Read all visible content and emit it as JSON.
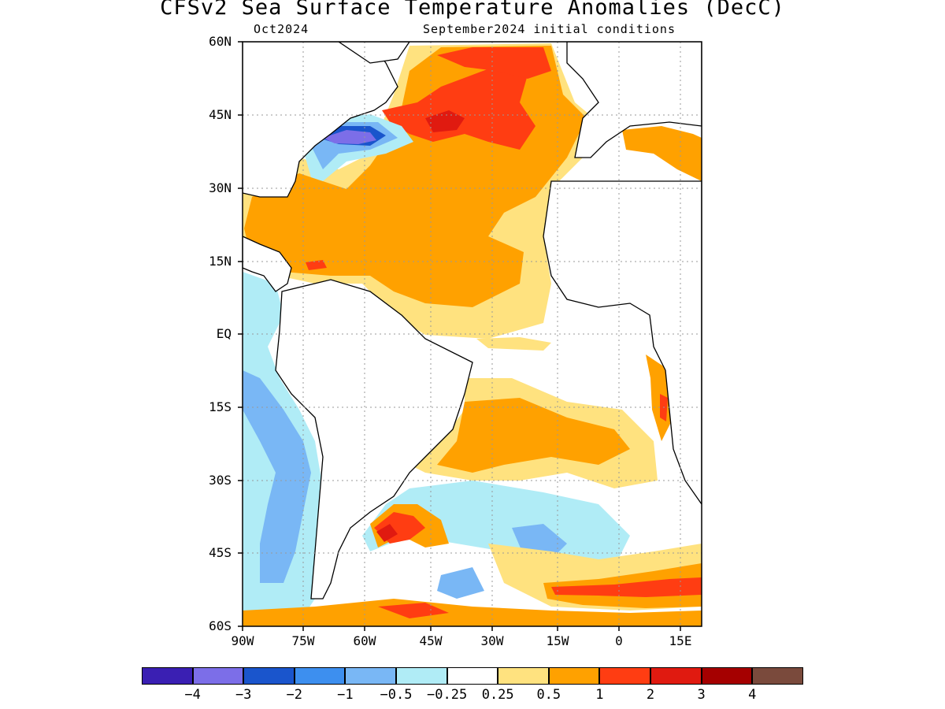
{
  "title": "CFSv2 Sea Surface Temperature Anomalies (DecC)",
  "subtitle_left": "Oct2024",
  "subtitle_right": "September2024 initial conditions",
  "lat_labels": [
    "60N",
    "45N",
    "30N",
    "15N",
    "EQ",
    "15S",
    "30S",
    "45S",
    "60S"
  ],
  "lon_labels": [
    "90W",
    "75W",
    "60W",
    "45W",
    "30W",
    "15W",
    "0",
    "15E"
  ],
  "colorbar": {
    "colors": [
      "#3a1fb3",
      "#7c6ee8",
      "#1a55cc",
      "#3d8fef",
      "#79b7f5",
      "#b0ecf6",
      "#ffffff",
      "#ffe27f",
      "#ffa100",
      "#ff3d12",
      "#e01a10",
      "#a50000",
      "#7a4a3c"
    ],
    "labels": [
      "-4",
      "-3",
      "-2",
      "-1",
      "-0.5",
      "-0.25",
      "0.25",
      "0.5",
      "1",
      "2",
      "3",
      "4"
    ]
  },
  "palette": {
    "land": "#ffffff",
    "coast": "#000000",
    "grid": "#999999"
  }
}
